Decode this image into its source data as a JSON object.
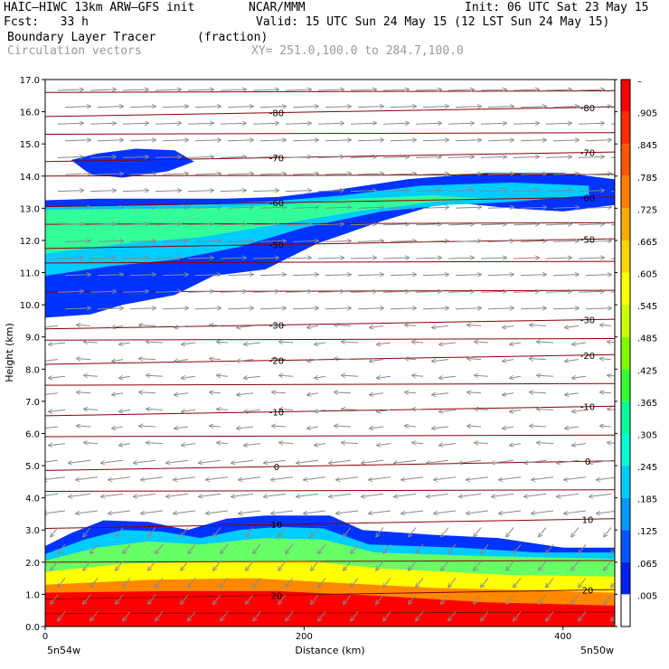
{
  "header": {
    "model": "HAIC–HIWC 13km ARW–GFS init",
    "center": "NCAR/MMM",
    "init": "Init: 06 UTC Sat 23 May 15",
    "fcst": "Fcst:   33 h",
    "valid": "Valid: 15 UTC Sun 24 May 15 (12 LST Sun 24 May 15)",
    "field": "Boundary Layer Tracer",
    "units": "(fraction)",
    "field2": "Circulation vectors",
    "xy": "XY= 251.0,100.0 to 284.7,100.0"
  },
  "chart_data": {
    "type": "heatmap",
    "xlabel": "Distance (km)",
    "ylabel": "Height (km)",
    "xlim": [
      0,
      440
    ],
    "ylim": [
      0,
      17
    ],
    "x_ticks": [
      "0",
      "200",
      "400"
    ],
    "y_ticks": [
      "0.0",
      "1.0",
      "2.0",
      "3.0",
      "4.0",
      "5.0",
      "6.0",
      "7.0",
      "8.0",
      "9.0",
      "10.0",
      "11.0",
      "12.0",
      "13.0",
      "14.0",
      "15.0",
      "16.0",
      "17.0"
    ],
    "x_endpoints": [
      "5n54w",
      "5n50w"
    ],
    "colorbar_labels": [
      "–",
      ".905",
      ".845",
      ".785",
      ".725",
      ".665",
      ".605",
      ".545",
      ".485",
      ".425",
      ".365",
      ".305",
      ".245",
      ".185",
      ".125",
      ".065",
      ".005"
    ],
    "colorbar_colors": [
      "#ff0000",
      "#ff2a00",
      "#ff5500",
      "#ff7f00",
      "#ffaa00",
      "#ffd400",
      "#ffff00",
      "#ccff00",
      "#80ff00",
      "#33ff33",
      "#00ff99",
      "#00ffd5",
      "#00ccff",
      "#0099ff",
      "#0055ff",
      "#0022ee",
      "#ffffff"
    ],
    "temperature_contours": [
      {
        "label": "-80",
        "height_km": 16.0
      },
      {
        "label": "-70",
        "height_km": 14.6
      },
      {
        "label": "-60",
        "height_km": 13.2
      },
      {
        "label": "-50",
        "height_km": 11.9
      },
      {
        "label": "-30",
        "height_km": 9.4
      },
      {
        "label": "-20",
        "height_km": 8.3
      },
      {
        "label": "-10",
        "height_km": 6.7
      },
      {
        "label": "0",
        "height_km": 5.0
      },
      {
        "label": "10",
        "height_km": 3.2
      },
      {
        "label": "20",
        "height_km": 1.0
      }
    ],
    "plain_contour_heights_km": [
      16.6,
      15.3,
      14.0,
      12.5,
      11.3,
      10.4,
      8.9,
      7.5,
      5.9,
      4.2,
      2.0,
      0.4
    ]
  }
}
